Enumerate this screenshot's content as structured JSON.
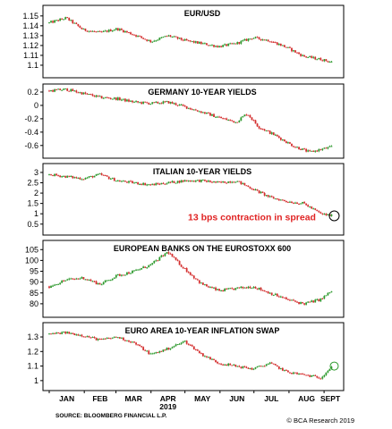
{
  "chart_data": [
    {
      "type": "candlestick",
      "title": "EUR/USD",
      "ylim": [
        1.09,
        1.158
      ],
      "yticks": [
        1.1,
        1.11,
        1.12,
        1.13,
        1.14,
        1.15
      ],
      "ytick_labels": [
        "1.1",
        "1.11",
        "1.12",
        "1.13",
        "1.14",
        "1.15"
      ],
      "x": [
        0,
        15,
        30,
        45,
        60,
        75,
        90,
        105,
        120,
        135,
        150,
        165,
        180,
        195,
        210,
        225,
        240,
        250
      ],
      "values": [
        1.143,
        1.148,
        1.136,
        1.133,
        1.137,
        1.131,
        1.124,
        1.13,
        1.125,
        1.122,
        1.119,
        1.122,
        1.128,
        1.125,
        1.118,
        1.109,
        1.106,
        1.103
      ]
    },
    {
      "type": "candlestick",
      "title": "GERMANY 10-YEAR YIELDS",
      "ylim": [
        -0.75,
        0.28
      ],
      "yticks": [
        -0.6,
        -0.4,
        -0.2,
        0,
        0.2
      ],
      "ytick_labels": [
        "-0.6",
        "-0.4",
        "-0.2",
        "0",
        "0.2"
      ],
      "x": [
        0,
        15,
        30,
        45,
        60,
        75,
        90,
        105,
        120,
        135,
        150,
        165,
        175,
        185,
        200,
        215,
        230,
        250
      ],
      "values": [
        0.22,
        0.24,
        0.18,
        0.12,
        0.1,
        0.05,
        0.03,
        0.05,
        -0.02,
        -0.1,
        -0.18,
        -0.25,
        -0.12,
        -0.32,
        -0.45,
        -0.6,
        -0.7,
        -0.62
      ]
    },
    {
      "type": "candlestick",
      "title": "ITALIAN 10-YEAR YIELDS",
      "ylim": [
        0.1,
        3.3
      ],
      "yticks": [
        0.5,
        1,
        1.5,
        2,
        2.5,
        3
      ],
      "ytick_labels": [
        "0.5",
        "1",
        "1.5",
        "2",
        "2.5",
        "3"
      ],
      "x": [
        0,
        15,
        30,
        45,
        60,
        75,
        90,
        105,
        120,
        135,
        150,
        165,
        180,
        195,
        210,
        225,
        240,
        250
      ],
      "values": [
        2.9,
        2.8,
        2.7,
        2.9,
        2.6,
        2.5,
        2.4,
        2.5,
        2.6,
        2.6,
        2.5,
        2.6,
        2.2,
        1.8,
        1.6,
        1.5,
        1.0,
        0.9
      ],
      "annotation": "13 bps contraction in spread"
    },
    {
      "type": "candlestick",
      "title": "EUROPEAN BANKS ON THE EUROSTOXX 600",
      "ylim": [
        75,
        108
      ],
      "yticks": [
        80,
        85,
        90,
        95,
        100,
        105
      ],
      "ytick_labels": [
        "80",
        "85",
        "90",
        "95",
        "100",
        "105"
      ],
      "x": [
        0,
        15,
        30,
        45,
        60,
        75,
        90,
        105,
        110,
        120,
        135,
        150,
        165,
        180,
        195,
        210,
        225,
        240,
        250
      ],
      "values": [
        88,
        91,
        92,
        89,
        93,
        95,
        98,
        104,
        101,
        96,
        89,
        86,
        87,
        88,
        85,
        82,
        80,
        82,
        86
      ]
    },
    {
      "type": "candlestick",
      "title": "EURO AREA 10-YEAR INFLATION SWAP",
      "ylim": [
        0.95,
        1.38
      ],
      "yticks": [
        1,
        1.1,
        1.2,
        1.3
      ],
      "ytick_labels": [
        "1",
        "1.1",
        "1.2",
        "1.3"
      ],
      "x": [
        0,
        15,
        30,
        45,
        60,
        75,
        90,
        105,
        120,
        135,
        150,
        165,
        180,
        195,
        210,
        225,
        240,
        250
      ],
      "values": [
        1.32,
        1.33,
        1.31,
        1.28,
        1.3,
        1.26,
        1.18,
        1.22,
        1.27,
        1.18,
        1.12,
        1.1,
        1.08,
        1.12,
        1.06,
        1.04,
        1.02,
        1.1
      ]
    }
  ],
  "x_axis": {
    "months": [
      "JAN",
      "FEB",
      "MAR",
      "APR",
      "MAY",
      "JUN",
      "JUL",
      "AUG",
      "SEPT"
    ],
    "month_x": [
      0,
      31,
      59,
      90,
      120,
      151,
      181,
      212,
      243
    ],
    "year": "2019",
    "domain": [
      0,
      254
    ]
  },
  "footer": {
    "source": "SOURCE: BLOOMBERG FINANCIAL L.P.",
    "copyright": "© BCA Research 2019"
  },
  "colors": {
    "up": "#2e9a2e",
    "down": "#d42f2f",
    "annotation": "#e02424"
  }
}
